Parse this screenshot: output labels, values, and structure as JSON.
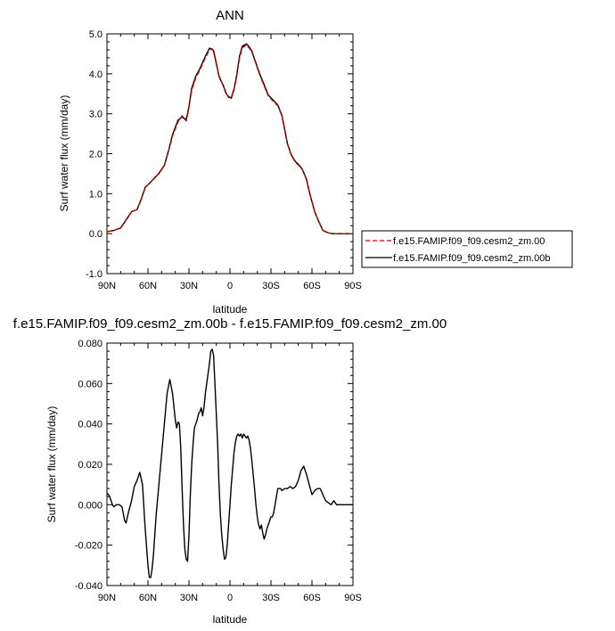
{
  "chart_data": [
    {
      "type": "line",
      "title": "ANN",
      "xlabel": "latitude",
      "ylabel": "Surf water flux (mm/day)",
      "xlim": [
        90,
        -90
      ],
      "ylim": [
        -1.0,
        5.0
      ],
      "xticks": [
        {
          "v": 90,
          "label": "90N"
        },
        {
          "v": 60,
          "label": "60N"
        },
        {
          "v": 30,
          "label": "30N"
        },
        {
          "v": 0,
          "label": "0"
        },
        {
          "v": -30,
          "label": "30S"
        },
        {
          "v": -60,
          "label": "60S"
        },
        {
          "v": -90,
          "label": "90S"
        }
      ],
      "yticks": [
        {
          "v": -1.0,
          "label": "-1.0"
        },
        {
          "v": 0.0,
          "label": "0.0"
        },
        {
          "v": 1.0,
          "label": "1.0"
        },
        {
          "v": 2.0,
          "label": "2.0"
        },
        {
          "v": 3.0,
          "label": "3.0"
        },
        {
          "v": 4.0,
          "label": "4.0"
        },
        {
          "v": 5.0,
          "label": "5.0"
        }
      ],
      "legend_position": "right",
      "series": [
        {
          "name": "f.e15.FAMIP.f09_f09.cesm2_zm.00",
          "color": "#cc0000",
          "dash": "dashed",
          "x": [
            90,
            85,
            80,
            76,
            72,
            68,
            65,
            62,
            58,
            55,
            52,
            48,
            45,
            42,
            38,
            35,
            32,
            30,
            28,
            25,
            22,
            18,
            15,
            13,
            12,
            10,
            8,
            5,
            3,
            1,
            -1,
            -3,
            -5,
            -7,
            -9,
            -12,
            -14,
            -16,
            -18,
            -20,
            -22,
            -25,
            -28,
            -32,
            -35,
            -38,
            -40,
            -42,
            -45,
            -48,
            -50,
            -53,
            -56,
            -58,
            -60,
            -62,
            -65,
            -68,
            -72,
            -75,
            -78,
            -82,
            -86,
            -90
          ],
          "y": [
            0.05,
            0.08,
            0.15,
            0.35,
            0.55,
            0.6,
            0.85,
            1.15,
            1.3,
            1.4,
            1.5,
            1.7,
            2.05,
            2.45,
            2.8,
            2.95,
            2.82,
            3.15,
            3.6,
            3.9,
            4.1,
            4.4,
            4.6,
            4.62,
            4.55,
            4.25,
            3.95,
            3.7,
            3.55,
            3.4,
            3.42,
            3.6,
            3.95,
            4.4,
            4.65,
            4.72,
            4.65,
            4.55,
            4.35,
            4.15,
            3.95,
            3.7,
            3.45,
            3.3,
            3.2,
            2.95,
            2.6,
            2.25,
            1.95,
            1.78,
            1.72,
            1.6,
            1.35,
            1.05,
            0.8,
            0.55,
            0.3,
            0.08,
            0.02,
            0.0,
            0.0,
            0.0,
            0.0,
            0.0
          ]
        },
        {
          "name": "f.e15.FAMIP.f09_f09.cesm2_zm.00b",
          "color": "#000000",
          "dash": "solid",
          "x": [
            90,
            85,
            80,
            76,
            72,
            68,
            65,
            62,
            58,
            55,
            52,
            48,
            45,
            42,
            38,
            35,
            32,
            30,
            28,
            25,
            22,
            18,
            15,
            13,
            12,
            10,
            8,
            5,
            3,
            1,
            -1,
            -3,
            -5,
            -7,
            -9,
            -12,
            -14,
            -16,
            -18,
            -20,
            -22,
            -25,
            -28,
            -32,
            -35,
            -38,
            -40,
            -42,
            -45,
            -48,
            -50,
            -53,
            -56,
            -58,
            -60,
            -62,
            -65,
            -68,
            -72,
            -75,
            -78,
            -82,
            -86,
            -90
          ],
          "y": [
            0.05,
            0.08,
            0.14,
            0.34,
            0.55,
            0.6,
            0.86,
            1.16,
            1.29,
            1.4,
            1.51,
            1.71,
            2.07,
            2.48,
            2.84,
            2.92,
            2.85,
            3.18,
            3.64,
            3.94,
            4.13,
            4.44,
            4.64,
            4.62,
            4.58,
            4.27,
            3.93,
            3.72,
            3.52,
            3.43,
            3.39,
            3.62,
            3.98,
            4.44,
            4.69,
            4.75,
            4.68,
            4.57,
            4.37,
            4.17,
            3.98,
            3.73,
            3.47,
            3.33,
            3.22,
            2.96,
            2.62,
            2.26,
            1.96,
            1.8,
            1.74,
            1.61,
            1.36,
            1.06,
            0.8,
            0.55,
            0.3,
            0.08,
            0.02,
            0.0,
            0.0,
            0.0,
            0.0,
            0.0
          ]
        }
      ]
    },
    {
      "type": "line",
      "title": "f.e15.FAMIP.f09_f09.cesm2_zm.00b - f.e15.FAMIP.f09_f09.cesm2_zm.00",
      "xlabel": "latitude",
      "ylabel": "Surf water flux (mm/day)",
      "xlim": [
        90,
        -90
      ],
      "ylim": [
        -0.04,
        0.08
      ],
      "xticks": [
        {
          "v": 90,
          "label": "90N"
        },
        {
          "v": 60,
          "label": "60N"
        },
        {
          "v": 30,
          "label": "30N"
        },
        {
          "v": 0,
          "label": "0"
        },
        {
          "v": -30,
          "label": "30S"
        },
        {
          "v": -60,
          "label": "60S"
        },
        {
          "v": -90,
          "label": "90S"
        }
      ],
      "yticks": [
        {
          "v": -0.04,
          "label": "-0.040"
        },
        {
          "v": -0.02,
          "label": "-0.020"
        },
        {
          "v": 0.0,
          "label": "0.000"
        },
        {
          "v": 0.02,
          "label": "0.020"
        },
        {
          "v": 0.04,
          "label": "0.040"
        },
        {
          "v": 0.06,
          "label": "0.060"
        },
        {
          "v": 0.08,
          "label": "0.080"
        }
      ],
      "series": [
        {
          "color": "#000000",
          "dash": "solid",
          "x": [
            90,
            88,
            86,
            85,
            83,
            81,
            79,
            77,
            76,
            74,
            72,
            70,
            68,
            66,
            64,
            62,
            60,
            59,
            58,
            57,
            56,
            55,
            54,
            52,
            50,
            48,
            46,
            44,
            42,
            40,
            39,
            38,
            37,
            36,
            35,
            34,
            33,
            32,
            31,
            30,
            29,
            28,
            27,
            26,
            25,
            24,
            23,
            22,
            21,
            20,
            19,
            18,
            17,
            16,
            15,
            14,
            13,
            12,
            11,
            10,
            9,
            8,
            7,
            6,
            5,
            4,
            3,
            2,
            1,
            0,
            -1,
            -2,
            -3,
            -4,
            -5,
            -6,
            -7,
            -8,
            -9,
            -10,
            -11,
            -12,
            -13,
            -14,
            -15,
            -16,
            -17,
            -18,
            -19,
            -20,
            -21,
            -22,
            -23,
            -24,
            -25,
            -26,
            -27,
            -28,
            -29,
            -30,
            -31,
            -32,
            -33,
            -34,
            -35,
            -36,
            -37,
            -38,
            -40,
            -42,
            -44,
            -46,
            -48,
            -50,
            -52,
            -54,
            -56,
            -58,
            -60,
            -62,
            -64,
            -66,
            -68,
            -70,
            -72,
            -74,
            -76,
            -78,
            -80,
            -82,
            -84,
            -86,
            -88,
            -90
          ],
          "y": [
            0.006,
            0.004,
            0.0,
            -0.001,
            0.0,
            0.0,
            -0.001,
            -0.008,
            -0.009,
            -0.003,
            0.002,
            0.009,
            0.012,
            0.016,
            0.01,
            -0.012,
            -0.03,
            -0.036,
            -0.036,
            -0.032,
            -0.025,
            -0.015,
            -0.005,
            0.01,
            0.025,
            0.04,
            0.055,
            0.062,
            0.055,
            0.042,
            0.038,
            0.041,
            0.04,
            0.028,
            0.008,
            -0.01,
            -0.022,
            -0.027,
            -0.028,
            -0.015,
            0.005,
            0.02,
            0.03,
            0.038,
            0.04,
            0.042,
            0.045,
            0.046,
            0.048,
            0.044,
            0.048,
            0.055,
            0.06,
            0.065,
            0.07,
            0.076,
            0.077,
            0.074,
            0.06,
            0.045,
            0.03,
            0.01,
            -0.005,
            -0.015,
            -0.022,
            -0.027,
            -0.026,
            -0.02,
            -0.01,
            0.0,
            0.01,
            0.018,
            0.026,
            0.031,
            0.034,
            0.035,
            0.034,
            0.035,
            0.033,
            0.035,
            0.034,
            0.033,
            0.034,
            0.032,
            0.028,
            0.022,
            0.015,
            0.008,
            0.0,
            -0.006,
            -0.01,
            -0.012,
            -0.01,
            -0.014,
            -0.017,
            -0.015,
            -0.012,
            -0.01,
            -0.008,
            -0.006,
            -0.006,
            -0.004,
            0.0,
            0.004,
            0.008,
            0.008,
            0.008,
            0.007,
            0.008,
            0.008,
            0.009,
            0.008,
            0.009,
            0.012,
            0.017,
            0.019,
            0.015,
            0.01,
            0.005,
            0.007,
            0.008,
            0.008,
            0.005,
            0.002,
            0.001,
            0.0,
            0.002,
            0.0,
            0.0,
            0.0,
            0.0,
            0.0,
            0.0,
            0.0
          ]
        }
      ]
    }
  ]
}
